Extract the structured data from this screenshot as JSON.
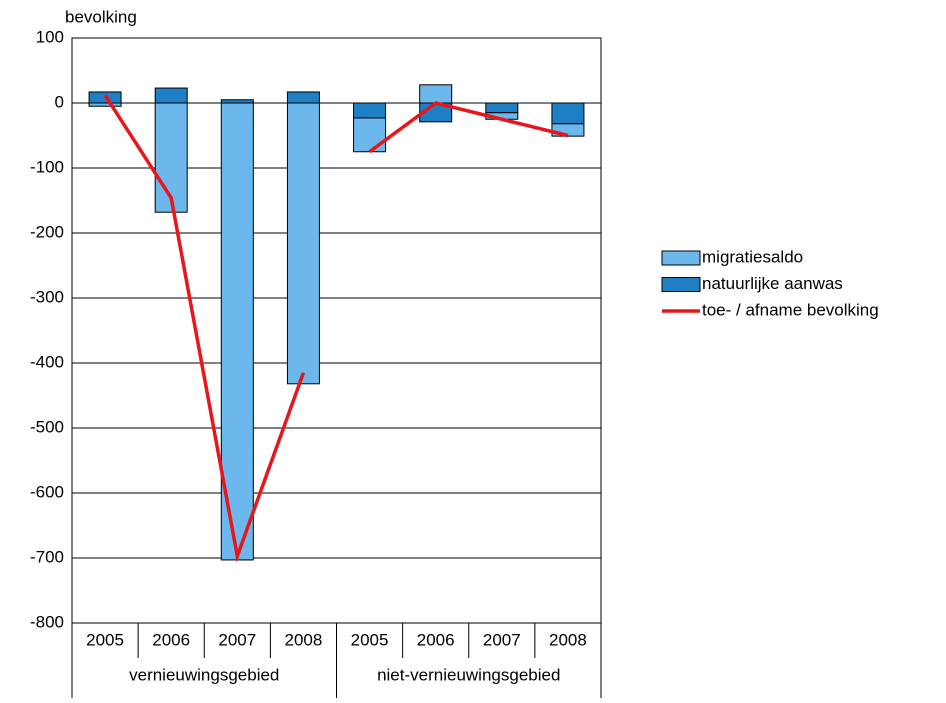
{
  "chart_data": {
    "type": "bar",
    "stacked": true,
    "y_label": "bevolking",
    "categories": [
      "2005",
      "2006",
      "2007",
      "2008",
      "2005",
      "2006",
      "2007",
      "2008"
    ],
    "groups": [
      "vernieuwingsgebied",
      "niet-vernieuwingsgebied"
    ],
    "series": [
      {
        "name": "migratiesaldo",
        "type": "bar",
        "color": "#6cb8ec",
        "values": [
          -5,
          -168,
          -703,
          -432,
          -52,
          28,
          -10,
          -19
        ]
      },
      {
        "name": "natuurlijke aanwas",
        "type": "bar",
        "color": "#1f7fc4",
        "values": [
          17,
          23,
          5,
          17,
          -23,
          -29,
          -15,
          -32
        ]
      },
      {
        "name": "toe- / afname bevolking",
        "type": "line",
        "color": "#e8161b",
        "values": [
          12,
          -146,
          -697,
          -415,
          -75,
          0,
          -25,
          -50
        ]
      }
    ],
    "ylim": [
      -800,
      100
    ],
    "yticks": [
      100,
      0,
      -100,
      -200,
      -300,
      -400,
      -500,
      -600,
      -700,
      -800
    ],
    "grid": true,
    "legend": "right"
  }
}
